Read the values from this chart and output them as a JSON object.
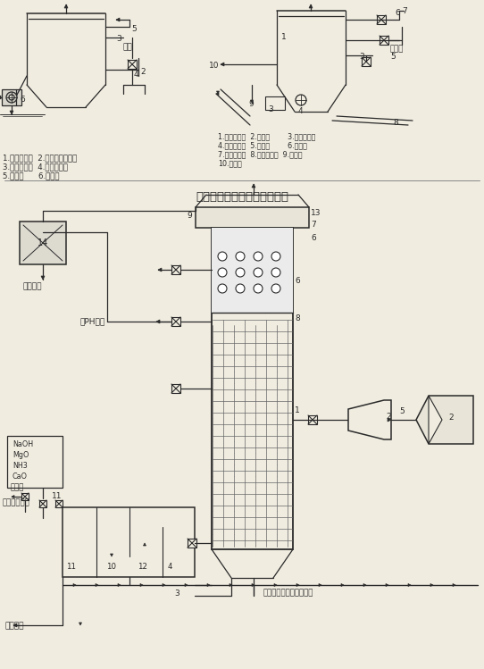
{
  "background_color": "#f0ece0",
  "fig_width": 5.42,
  "fig_height": 7.49,
  "dpi": 100,
  "left_labels": [
    "1.湿式除尘器  2.平衡循环供液箱",
    "3.循环供液泵  4.液力搅拌器",
    "5.供液管      6.排灰机"
  ],
  "right_labels": [
    "1.湿式除尘器  2.补水箱        3.沉降循环槽",
    "4.循环供液末  5.石灰槽        6.供液管",
    "7.激流喷咀管  8.液力搅拌器  9.排灰阀",
    "10.排灰机"
  ],
  "main_title": "除尘脱硫工艺与装备系统示图",
  "chemicals": [
    "NaOH",
    "MgO",
    "NH3",
    "CaO"
  ],
  "label_xishouji": "吸收剂",
  "label_ziguolu": "自锅炉冲渣水",
  "label_ziguolu2": "自锅炉冲渣水（工业水）",
  "label_qu_yinfengji": "去引风机",
  "label_qu_ph": "去PH调整",
  "label_qu_jiangye": "去渣浆泵",
  "label_shihui": "石灰",
  "label_xiaoshihui": "消石灰"
}
